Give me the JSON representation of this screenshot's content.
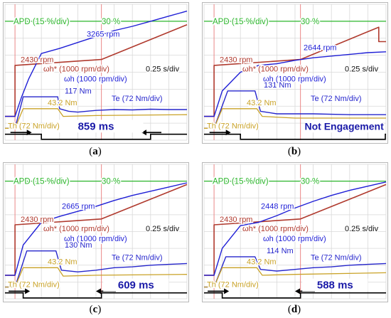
{
  "colors": {
    "apd": "#2bb52b",
    "speed_ref": "#b03a2e",
    "speed": "#1f1fd6",
    "te": "#2626cc",
    "th": "#c9a227",
    "engage": "#000000",
    "grid": "#d8d8d8"
  },
  "panels": [
    {
      "caption": "a",
      "apd_label": "APD (15 %/div)",
      "apd_value": "30 %",
      "speed_ref_value": "2430 rpm",
      "speed_ref_label": "ωh* (1000 rpm/div)",
      "speed_label": "ωh (1000 rpm/div)",
      "speed_peak": "3265 rpm",
      "time_scale": "0.25 s/div",
      "te_label": "Te (72 Nm/div)",
      "te_peak": "117 Nm",
      "th_label": "Th (72 Nm/div)",
      "th_value": "43.2 Nm",
      "engagement": "859 ms"
    },
    {
      "caption": "b",
      "apd_label": "APD (15 %/div)",
      "apd_value": "30 %",
      "speed_ref_value": "2430 rpm",
      "speed_ref_label": "ωh* (1000 rpm/div)",
      "speed_label": "ωh (1000 rpm/div)",
      "speed_peak": "2644 rpm",
      "time_scale": "0.25 s/div",
      "te_label": "Te (72 Nm/div)",
      "te_peak": "131 Nm",
      "th_label": "Th (72 Nm/div)",
      "th_value": "43.2 Nm",
      "engagement": "Not Engagement"
    },
    {
      "caption": "c",
      "apd_label": "APD (15 %/div)",
      "apd_value": "30 %",
      "speed_ref_value": "2430 rpm",
      "speed_ref_label": "ωh* (1000 rpm/div)",
      "speed_label": "ωh (1000 rpm/div)",
      "speed_peak": "2665 rpm",
      "time_scale": "0.25 s/div",
      "te_label": "Te (72 Nm/div)",
      "te_peak": "130 Nm",
      "th_label": "Th (72 Nm/div)",
      "th_value": "43.2 Nm",
      "engagement": "609 ms"
    },
    {
      "caption": "d",
      "apd_label": "APD (15 %/div)",
      "apd_value": "30 %",
      "speed_ref_value": "2430 rpm",
      "speed_ref_label": "ωh* (1000 rpm/div)",
      "speed_label": "ωh (1000 rpm/div)",
      "speed_peak": "2448 rpm",
      "time_scale": "0.25 s/div",
      "te_label": "Te (72 Nm/div)",
      "te_peak": "114 Nm",
      "th_label": "Th (72 Nm/div)",
      "th_value": "43.2 Nm",
      "engagement": "588 ms"
    }
  ],
  "chart_data": [
    {
      "type": "line",
      "x_unit": "div",
      "series": [
        {
          "name": "APD",
          "x": [
            0,
            10
          ],
          "y": [
            7,
            7
          ]
        },
        {
          "name": "ωh*",
          "x": [
            0,
            0.55,
            0.55,
            5.3,
            10
          ],
          "y": [
            1.4,
            1.4,
            4.4,
            4.75,
            6.8
          ]
        },
        {
          "name": "ωh",
          "x": [
            0,
            0.55,
            0.9,
            1.3,
            2,
            3,
            4,
            5,
            6,
            7,
            8,
            9,
            10
          ],
          "y": [
            1.4,
            1.4,
            2.5,
            3.6,
            5.1,
            5.4,
            5.75,
            6.1,
            6.45,
            6.7,
            7,
            7.3,
            7.6
          ]
        },
        {
          "name": "Te",
          "x": [
            0,
            0.55,
            1,
            2.9,
            3,
            3.5,
            4,
            5,
            6,
            7,
            8,
            9,
            10
          ],
          "y": [
            0.7,
            0.7,
            2.55,
            2.55,
            1.85,
            1.7,
            1.65,
            1.75,
            1.8,
            1.78,
            1.82,
            1.8,
            1.8
          ]
        },
        {
          "name": "Th",
          "x": [
            0,
            0.55,
            1,
            2.9,
            3.2,
            5,
            10
          ],
          "y": [
            0.7,
            0.7,
            1.85,
            1.85,
            1.4,
            1.45,
            1.5
          ]
        }
      ]
    },
    {
      "type": "line",
      "x_unit": "div",
      "series": [
        {
          "name": "APD",
          "x": [
            0,
            10
          ],
          "y": [
            7,
            7
          ]
        },
        {
          "name": "ωh*",
          "x": [
            0,
            0.55,
            0.55,
            5.3,
            9.6,
            9.6,
            10
          ],
          "y": [
            1.4,
            1.4,
            4.4,
            4.75,
            6.65,
            5.8,
            5.8
          ]
        },
        {
          "name": "ωh",
          "x": [
            0,
            0.55,
            1,
            2,
            3,
            4,
            5,
            6,
            7,
            8,
            9,
            10
          ],
          "y": [
            1.4,
            1.4,
            2.9,
            4,
            4.4,
            4.5,
            4.7,
            4.85,
            4.95,
            5.05,
            5.15,
            5.2
          ]
        },
        {
          "name": "Te",
          "x": [
            0,
            0.55,
            1.3,
            2.8,
            3.1,
            4,
            6,
            8,
            10
          ],
          "y": [
            0.7,
            0.7,
            2.9,
            2.9,
            1.7,
            1.55,
            1.55,
            1.5,
            1.5
          ]
        },
        {
          "name": "Th",
          "x": [
            0,
            0.55,
            1,
            2.9,
            3.2,
            5,
            10
          ],
          "y": [
            0.7,
            0.7,
            1.85,
            1.85,
            1.4,
            1.3,
            1.3
          ]
        }
      ]
    },
    {
      "type": "line",
      "x_unit": "div",
      "series": [
        {
          "name": "APD",
          "x": [
            0,
            10
          ],
          "y": [
            7,
            7
          ]
        },
        {
          "name": "ωh*",
          "x": [
            0,
            0.55,
            0.55,
            5.3,
            10
          ],
          "y": [
            1.4,
            1.4,
            4.4,
            4.75,
            6.8
          ]
        },
        {
          "name": "ωh",
          "x": [
            0,
            0.55,
            1,
            2,
            3,
            4,
            5,
            6,
            7,
            8,
            9,
            10
          ],
          "y": [
            1.4,
            1.4,
            3.2,
            4.55,
            4.9,
            5.2,
            5.5,
            5.85,
            6.15,
            6.4,
            6.65,
            6.9
          ]
        },
        {
          "name": "Te",
          "x": [
            0,
            0.55,
            1.2,
            2.8,
            3.1,
            4,
            5,
            6,
            7,
            8,
            9,
            10
          ],
          "y": [
            0.7,
            0.7,
            2.85,
            2.85,
            1.7,
            1.6,
            1.7,
            1.85,
            1.9,
            2,
            2.05,
            2.1
          ]
        },
        {
          "name": "Th",
          "x": [
            0,
            0.55,
            1,
            2.9,
            3.2,
            5,
            10
          ],
          "y": [
            0.7,
            0.7,
            1.85,
            1.85,
            1.35,
            1.4,
            1.45
          ]
        }
      ]
    },
    {
      "type": "line",
      "x_unit": "div",
      "series": [
        {
          "name": "APD",
          "x": [
            0,
            10
          ],
          "y": [
            7,
            7
          ]
        },
        {
          "name": "ωh*",
          "x": [
            0,
            0.55,
            0.55,
            5.3,
            10
          ],
          "y": [
            1.4,
            1.4,
            4.4,
            4.75,
            6.8
          ]
        },
        {
          "name": "ωh",
          "x": [
            0,
            0.55,
            1,
            2,
            3,
            4,
            5,
            6,
            7,
            8,
            9,
            10
          ],
          "y": [
            1.4,
            1.4,
            3,
            4.35,
            4.55,
            4.95,
            5.4,
            5.8,
            6.15,
            6.45,
            6.7,
            6.95
          ]
        },
        {
          "name": "Te",
          "x": [
            0,
            0.55,
            1.2,
            2.8,
            3.1,
            4,
            5,
            6,
            7,
            8,
            9,
            10
          ],
          "y": [
            0.7,
            0.7,
            2.5,
            2.5,
            1.75,
            1.65,
            1.75,
            1.85,
            1.9,
            2,
            2.05,
            2.1
          ]
        },
        {
          "name": "Th",
          "x": [
            0,
            0.55,
            1,
            2.9,
            3.2,
            5,
            10
          ],
          "y": [
            0.7,
            0.7,
            1.85,
            1.85,
            1.4,
            1.45,
            1.55
          ]
        }
      ]
    }
  ]
}
